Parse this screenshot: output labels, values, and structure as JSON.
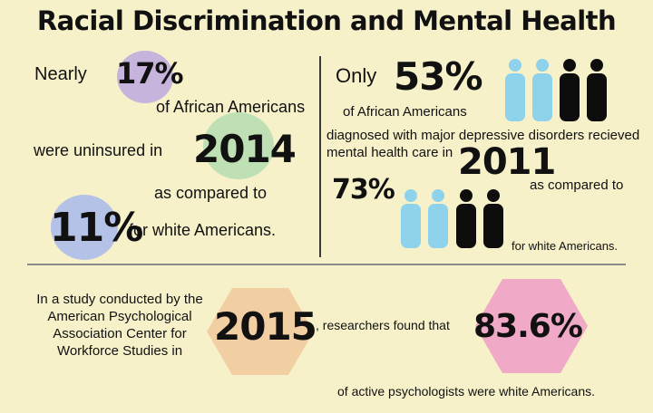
{
  "title": "Racial Discrimination and Mental Health",
  "left": {
    "nearly": "Nearly",
    "pct_uninsured": "17%",
    "of_african_americans": "of African Americans",
    "were_uninsured_in": "were uninsured in",
    "year": "2014",
    "as_compared_to": "as compared to",
    "pct_white": "11%",
    "for_white": "for white Americans."
  },
  "right": {
    "only": "Only",
    "pct_care": "53%",
    "of_african_americans": "of African Americans",
    "diagnosed_line1": "diagnosed with major depressive disorders recieved",
    "diagnosed_line2": "mental health care in",
    "year": "2011",
    "pct_white": "73%",
    "as_compared_to": "as compared to",
    "for_white": "for white Americans."
  },
  "bottom": {
    "study_line1": "In a study conducted by the",
    "study_line2": "American Psychological",
    "study_line3": "Association Center for",
    "study_line4": "Workforce Studies in",
    "year": "2015",
    "researchers_found": ", researchers found that",
    "pct": "83.6%",
    "of_active": "of active psychologists were white Americans."
  },
  "colors": {
    "background": "#f6f1c9",
    "purple_circle": "#c7b4dc",
    "green_circle": "#bfe0b4",
    "blue_circle": "#b3c2e6",
    "light_blue_person": "#8fd2ec",
    "black_person": "#0d0d0d",
    "peach_hex": "#f2cfa3",
    "pink_hex": "#f0a9c6"
  },
  "icons": {
    "figure": "person-icon"
  }
}
